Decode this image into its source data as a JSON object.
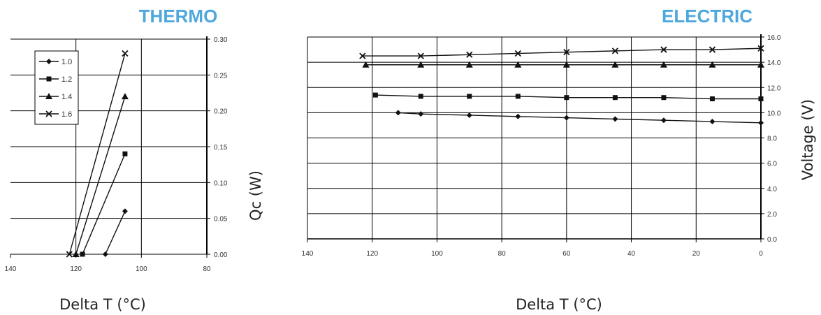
{
  "chart_data": [
    {
      "type": "line",
      "title": "THERMO",
      "xlabel": "Delta T (°C)",
      "ylabel": "Qc (W)",
      "xlim": [
        140,
        80
      ],
      "ylim": [
        0,
        0.3
      ],
      "x_ticks": [
        "140",
        "120",
        "100",
        "80"
      ],
      "y_ticks": [
        "0.00",
        "0.05",
        "0.10",
        "0.15",
        "0.20",
        "0.25",
        "0.30"
      ],
      "grid": true,
      "legend": "top-left",
      "series": [
        {
          "name": "1.0",
          "marker": "diamond",
          "x": [
            111,
            105
          ],
          "y": [
            0.0,
            0.06
          ]
        },
        {
          "name": "1.2",
          "marker": "square",
          "x": [
            118,
            105
          ],
          "y": [
            0.0,
            0.14
          ]
        },
        {
          "name": "1.4",
          "marker": "triangle",
          "x": [
            120,
            105
          ],
          "y": [
            0.0,
            0.22
          ]
        },
        {
          "name": "1.6",
          "marker": "x",
          "x": [
            122,
            105
          ],
          "y": [
            0.0,
            0.28
          ]
        }
      ]
    },
    {
      "type": "line",
      "title": "ELECTRIC",
      "xlabel": "Delta T (°C)",
      "ylabel": "Voltage (V)",
      "xlim": [
        140,
        0
      ],
      "ylim": [
        0,
        16
      ],
      "x_ticks": [
        "140",
        "120",
        "100",
        "80",
        "60",
        "40",
        "20",
        "0"
      ],
      "y_ticks": [
        "0.0",
        "2.0",
        "4.0",
        "6.0",
        "8.0",
        "10.0",
        "12.0",
        "14.0",
        "16.0"
      ],
      "grid": true,
      "series": [
        {
          "name": "1.0",
          "marker": "diamond",
          "x": [
            112,
            105,
            90,
            75,
            60,
            45,
            30,
            15,
            0
          ],
          "y": [
            10.0,
            9.9,
            9.8,
            9.7,
            9.6,
            9.5,
            9.4,
            9.3,
            9.2
          ]
        },
        {
          "name": "1.2",
          "marker": "square",
          "x": [
            119,
            105,
            90,
            75,
            60,
            45,
            30,
            15,
            0
          ],
          "y": [
            11.4,
            11.3,
            11.3,
            11.3,
            11.2,
            11.2,
            11.2,
            11.1,
            11.1
          ]
        },
        {
          "name": "1.4",
          "marker": "triangle",
          "x": [
            122,
            105,
            90,
            75,
            60,
            45,
            30,
            15,
            0
          ],
          "y": [
            13.8,
            13.8,
            13.8,
            13.8,
            13.8,
            13.8,
            13.8,
            13.8,
            13.8
          ]
        },
        {
          "name": "1.6",
          "marker": "x",
          "x": [
            123,
            105,
            90,
            75,
            60,
            45,
            30,
            15,
            0
          ],
          "y": [
            14.5,
            14.5,
            14.6,
            14.7,
            14.8,
            14.9,
            15.0,
            15.0,
            15.1
          ]
        }
      ]
    }
  ]
}
